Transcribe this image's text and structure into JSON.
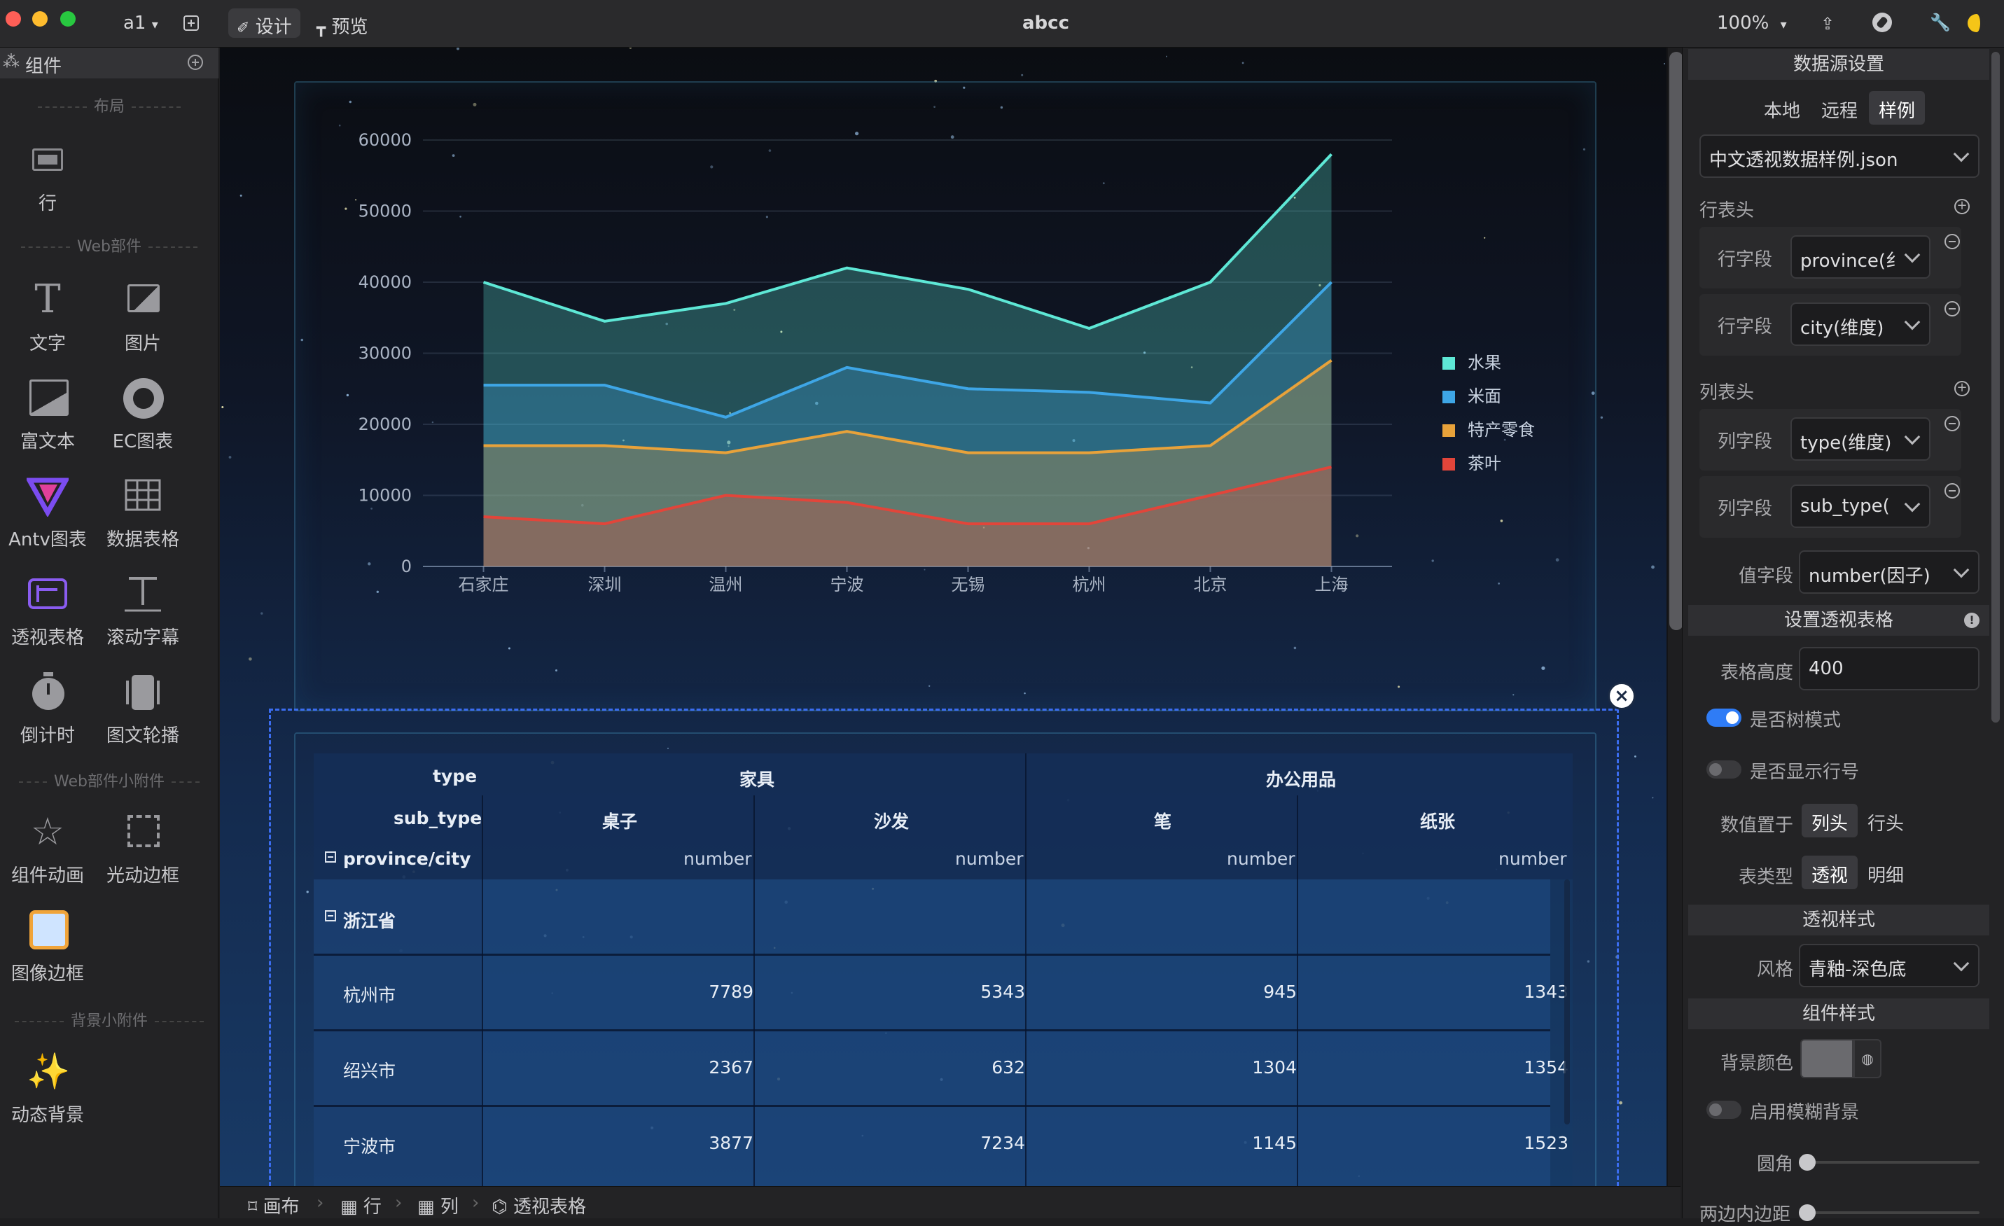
{
  "titlebar": {
    "doc_menu": "a1",
    "tab_design": "设计",
    "tab_preview": "预览",
    "title": "abcc",
    "zoom": "100%"
  },
  "left_panel": {
    "header": "组件",
    "sections": {
      "layout": "布局",
      "web": "Web部件",
      "web_widgets": "Web部件小附件",
      "bg_widgets": "背景小附件"
    },
    "items": {
      "row": "行",
      "text": "文字",
      "image": "图片",
      "richtext": "富文本",
      "echart": "EC图表",
      "antv": "Antv图表",
      "datatable": "数据表格",
      "pivot": "透视表格",
      "marquee": "滚动字幕",
      "countdown": "倒计时",
      "carousel": "图文轮播",
      "anim": "组件动画",
      "lightborder": "光动边框",
      "imgborder": "图像边框",
      "dynbg": "动态背景"
    }
  },
  "chart_data": {
    "type": "area",
    "categories": [
      "石家庄",
      "深圳",
      "温州",
      "宁波",
      "无锡",
      "杭州",
      "北京",
      "上海"
    ],
    "ylim": [
      0,
      60000
    ],
    "yticks": [
      "0",
      "10000",
      "20000",
      "30000",
      "40000",
      "50000",
      "60000"
    ],
    "legend_position": "right",
    "series": [
      {
        "name": "水果",
        "color": "#5ee8d6",
        "values": [
          40000,
          34500,
          37000,
          42000,
          39000,
          33500,
          40000,
          58000
        ]
      },
      {
        "name": "米面",
        "color": "#3ea6e6",
        "values": [
          25500,
          25500,
          21000,
          28000,
          25000,
          24500,
          23000,
          40000
        ]
      },
      {
        "name": "特产零食",
        "color": "#e8a23a",
        "values": [
          17000,
          17000,
          16000,
          19000,
          16000,
          16000,
          17000,
          29000
        ]
      },
      {
        "name": "茶叶",
        "color": "#e2453a",
        "values": [
          7000,
          6000,
          10000,
          9000,
          6000,
          6000,
          10000,
          14000
        ]
      }
    ]
  },
  "pivot_table": {
    "row_labels": {
      "type": "type",
      "sub_type": "sub_type",
      "province_city": "province/city"
    },
    "types": [
      "家具",
      "办公用品"
    ],
    "sub_types": [
      "桌子",
      "沙发",
      "笔",
      "纸张"
    ],
    "value_label": "number",
    "province": "浙江省",
    "rows": [
      {
        "city": "杭州市",
        "values": [
          "7789",
          "5343",
          "945",
          "1343"
        ]
      },
      {
        "city": "绍兴市",
        "values": [
          "2367",
          "632",
          "1304",
          "1354"
        ]
      },
      {
        "city": "宁波市",
        "values": [
          "3877",
          "7234",
          "1145",
          "1523"
        ]
      }
    ]
  },
  "breadcrumb": [
    "画布",
    "行",
    "列",
    "透视表格"
  ],
  "right_panel": {
    "datasource_title": "数据源设置",
    "source_tabs": [
      "本地",
      "远程",
      "样例"
    ],
    "active_source_tab": "样例",
    "dataset": "中文透视数据样例.json",
    "row_header": "行表头",
    "row_fields": [
      {
        "label": "行字段",
        "value": "province(纟"
      },
      {
        "label": "行字段",
        "value": "city(维度)"
      }
    ],
    "col_header": "列表头",
    "col_fields": [
      {
        "label": "列字段",
        "value": "type(维度)"
      },
      {
        "label": "列字段",
        "value": "sub_type("
      }
    ],
    "value_field_label": "值字段",
    "value_field": "number(因子)",
    "pivot_settings_title": "设置透视表格",
    "table_height_label": "表格高度",
    "table_height": "400",
    "tree_mode_label": "是否树模式",
    "tree_mode": true,
    "show_row_no_label": "是否显示行号",
    "show_row_no": false,
    "values_at_label": "数值置于",
    "values_at_options": [
      "列头",
      "行头"
    ],
    "values_at": "列头",
    "table_type_label": "表类型",
    "table_type_options": [
      "透视",
      "明细"
    ],
    "table_type": "透视",
    "pivot_style_title": "透视样式",
    "style_label": "风格",
    "style_value": "青釉-深色底",
    "comp_style_title": "组件样式",
    "bg_color_label": "背景颜色",
    "bg_color": "#6a6a6e",
    "blur_bg_label": "启用模糊背景",
    "blur_bg": false,
    "radius_label": "圆角",
    "padding_label": "两边内边距"
  }
}
